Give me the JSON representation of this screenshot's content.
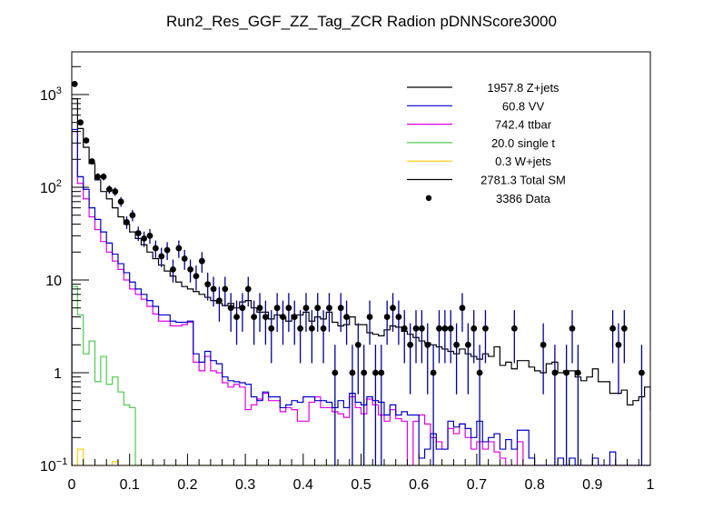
{
  "chart_data": {
    "type": "line",
    "title": "Run2_Res_GGF_ZZ_Tag_ZCR Radion  pDNNScore3000",
    "xlabel": "",
    "ylabel": "",
    "xlim": [
      0,
      1
    ],
    "ylim": [
      0.1,
      2900
    ],
    "yscale": "log",
    "grid": false,
    "legend_position": "top-right",
    "x_ticks": [
      "0",
      "0.1",
      "0.2",
      "0.3",
      "0.4",
      "0.5",
      "0.6",
      "0.7",
      "0.8",
      "0.9",
      "1"
    ],
    "y_ticks": [
      {
        "base": "10",
        "exp": "3",
        "value": 1000
      },
      {
        "base": "10",
        "exp": "2",
        "value": 100
      },
      {
        "base": "10",
        "exp": "",
        "value": 10
      },
      {
        "base": "1",
        "exp": "",
        "value": 1
      },
      {
        "base": "10",
        "exp": "−1",
        "value": 0.1
      }
    ],
    "bin_edges_start": 0,
    "bin_width": 0.01,
    "legend": [
      {
        "label": "1957.8 Z+jets",
        "color": "#000000",
        "kind": "line"
      },
      {
        "label": "60.8 VV",
        "color": "#0000cc",
        "kind": "line"
      },
      {
        "label": "742.4 ttbar",
        "color": "#e600e6",
        "kind": "line"
      },
      {
        "label": "20.0 single t",
        "color": "#4dcc4d",
        "kind": "line"
      },
      {
        "label": "0.3 W+jets",
        "color": "#ffcc00",
        "kind": "line"
      },
      {
        "label": "2781.3 Total SM",
        "color": "#000000",
        "kind": "line"
      },
      {
        "label": "3386 Data",
        "color": "#000000",
        "kind": "marker"
      }
    ],
    "series": [
      {
        "name": "Total SM",
        "color": "#000000",
        "values": [
          900,
          430,
          270,
          180,
          120,
          90,
          75,
          60,
          48,
          40,
          33,
          28,
          24,
          20,
          17,
          14.5,
          12.5,
          11,
          9.5,
          8.5,
          8,
          7.5,
          7,
          6.5,
          6,
          5.6,
          5.3,
          5.6,
          5,
          5.8,
          6,
          5,
          4.5,
          4.5,
          3.8,
          4.2,
          4,
          3.6,
          4.2,
          4.2,
          4.5,
          3.6,
          4,
          3.8,
          4.5,
          3.5,
          3.2,
          3.3,
          4,
          3.3,
          3.3,
          2.7,
          2.6,
          2.5,
          2.9,
          3.2,
          3.1,
          2.8,
          2.6,
          2.4,
          2.2,
          2.1,
          2,
          1.9,
          1.8,
          1.7,
          1.6,
          1.8,
          1.6,
          1.5,
          1.4,
          1.6,
          1.5,
          1.9,
          1.2,
          1.3,
          1.1,
          1.35,
          1.35,
          1.15,
          1.05,
          1,
          1.25,
          1.3,
          1,
          1.05,
          1.05,
          0.9,
          0.82,
          0.9,
          1.1,
          0.8,
          0.8,
          0.6,
          0.6,
          0.65,
          0.45,
          0.5,
          0.55,
          0.7,
          0.4
        ]
      },
      {
        "name": "VV",
        "color": "#0000cc",
        "values": [
          420,
          130,
          95,
          60,
          45,
          33,
          25,
          19,
          15,
          12,
          9.5,
          8,
          7,
          6,
          5.2,
          4.2,
          4.2,
          3.6,
          3.5,
          3.5,
          3.6,
          1.6,
          1.3,
          1.7,
          1.35,
          1.25,
          0.9,
          0.82,
          0.8,
          0.78,
          0.75,
          0.55,
          0.5,
          0.62,
          0.55,
          0.55,
          0.42,
          0.45,
          0.5,
          0.48,
          0.55,
          0.55,
          0.5,
          0.5,
          0.48,
          0.42,
          0.5,
          0.42,
          0.6,
          0.48,
          0.45,
          0.55,
          0.5,
          0.48,
          0.35,
          0.45,
          0.35,
          0.38,
          0.35,
          0.35,
          0.12,
          0.15,
          0.22,
          0.15,
          0.15,
          0.3,
          0.26,
          0.28,
          0.25,
          0.2,
          0.3,
          0.18,
          0.2,
          0.22,
          0.15,
          0.19,
          0.15,
          0.24,
          0.24,
          0.12,
          0.1,
          0.1,
          0.1,
          0.1,
          0.12,
          0.1,
          0.12,
          0.1,
          0.1,
          0.1,
          0.12,
          0.1,
          0.1,
          0.14,
          0.1,
          0.1,
          0.1,
          0.1,
          0.1,
          0.1
        ]
      },
      {
        "name": "ttbar",
        "color": "#e600e6",
        "values": [
          400,
          110,
          75,
          48,
          35,
          26,
          20,
          16,
          13,
          10,
          8,
          7,
          6.2,
          5.2,
          4.3,
          3.6,
          3.6,
          3.2,
          3.2,
          3.3,
          3.5,
          1.3,
          1.05,
          1.5,
          1.05,
          1,
          0.78,
          0.7,
          0.75,
          0.7,
          0.4,
          0.45,
          0.52,
          0.6,
          0.5,
          0.5,
          0.38,
          0.42,
          0.4,
          0.3,
          0.3,
          0.48,
          0.55,
          0.42,
          0.42,
          0.38,
          0.36,
          0.33,
          0.55,
          0.42,
          0.36,
          0.52,
          0.45,
          0.35,
          0.3,
          0.4,
          0.32,
          0.3,
          0.1,
          0.3,
          0.35,
          0.28,
          0.2,
          0.18,
          0.15,
          0.25,
          0.22,
          0.28,
          0.2,
          0.15,
          0.18,
          0.15,
          0.18,
          0.14,
          0.12,
          0.1,
          0.1,
          0.18,
          0.1,
          0.1,
          0.1,
          0.1,
          0.1,
          0.1,
          0.1,
          0.1,
          0.1,
          0.1,
          0.1,
          0.1,
          0.1,
          0.1,
          0.1,
          0.1,
          0.1,
          0.1,
          0.1,
          0.1,
          0.1,
          0.1
        ]
      },
      {
        "name": "single t",
        "color": "#4dcc4d",
        "values": [
          8.5,
          4.2,
          1.6,
          2.2,
          0.8,
          1.5,
          0.75,
          0.9,
          0.62,
          0.45,
          0.42,
          0.1,
          0.1,
          0.1,
          0.1,
          0.1,
          0.1,
          0.1,
          0.1,
          0.1,
          0.1,
          0.1,
          0.1,
          0.1,
          0.1,
          0.1,
          0.1,
          0.1,
          0.1,
          0.1,
          0.1,
          0.1,
          0.1,
          0.1,
          0.1,
          0.1,
          0.1,
          0.1,
          0.1,
          0.1,
          0.1,
          0.1,
          0.1,
          0.1,
          0.1,
          0.1,
          0.1,
          0.1,
          0.1,
          0.1,
          0.1,
          0.1,
          0.1,
          0.1,
          0.1,
          0.1,
          0.1,
          0.1,
          0.1,
          0.1,
          0.1,
          0.1,
          0.1,
          0.1,
          0.1,
          0.1,
          0.1,
          0.1,
          0.1,
          0.1,
          0.1,
          0.1,
          0.1,
          0.1,
          0.1,
          0.1,
          0.1,
          0.1,
          0.1,
          0.1,
          0.1,
          0.1,
          0.1,
          0.1,
          0.1,
          0.1,
          0.1,
          0.1,
          0.1,
          0.1,
          0.1,
          0.1,
          0.1,
          0.1,
          0.1,
          0.1,
          0.1,
          0.1,
          0.1,
          0.1
        ]
      },
      {
        "name": "W+jets",
        "color": "#ffcc00",
        "values": [
          0.1,
          0.15,
          0.1,
          0.1,
          0.1,
          0.1,
          0.1,
          0.11,
          0.1,
          0.1,
          0.1,
          0.1,
          0.1,
          0.1,
          0.1,
          0.1,
          0.1,
          0.1,
          0.1,
          0.1,
          0.1,
          0.1,
          0.1,
          0.1,
          0.1,
          0.1,
          0.1,
          0.1,
          0.1,
          0.1,
          0.1,
          0.1,
          0.1,
          0.1,
          0.1,
          0.1,
          0.1,
          0.1,
          0.1,
          0.1,
          0.1,
          0.1,
          0.1,
          0.1,
          0.1,
          0.1,
          0.1,
          0.1,
          0.1,
          0.1,
          0.1,
          0.1,
          0.1,
          0.1,
          0.1,
          0.1,
          0.1,
          0.1,
          0.1,
          0.1,
          0.1,
          0.1,
          0.1,
          0.1,
          0.1,
          0.1,
          0.1,
          0.1,
          0.1,
          0.1,
          0.1,
          0.1,
          0.1,
          0.1,
          0.1,
          0.1,
          0.1,
          0.1,
          0.1,
          0.1,
          0.1,
          0.1,
          0.1,
          0.1,
          0.1,
          0.1,
          0.1,
          0.1,
          0.1,
          0.1,
          0.1,
          0.1,
          0.1,
          0.1,
          0.1,
          0.1,
          0.1,
          0.1,
          0.1,
          0.1
        ]
      }
    ],
    "data_points": {
      "name": "Data",
      "x": [
        0.005,
        0.015,
        0.025,
        0.035,
        0.045,
        0.055,
        0.065,
        0.075,
        0.085,
        0.095,
        0.105,
        0.115,
        0.125,
        0.135,
        0.145,
        0.155,
        0.165,
        0.175,
        0.185,
        0.195,
        0.205,
        0.215,
        0.225,
        0.235,
        0.245,
        0.255,
        0.265,
        0.275,
        0.285,
        0.295,
        0.305,
        0.315,
        0.325,
        0.335,
        0.345,
        0.355,
        0.365,
        0.375,
        0.385,
        0.395,
        0.405,
        0.415,
        0.425,
        0.435,
        0.445,
        0.455,
        0.465,
        0.475,
        0.485,
        0.495,
        0.505,
        0.515,
        0.525,
        0.535,
        0.545,
        0.555,
        0.565,
        0.575,
        0.585,
        0.595,
        0.605,
        0.615,
        0.625,
        0.635,
        0.645,
        0.655,
        0.665,
        0.675,
        0.685,
        0.695,
        0.705,
        0.715,
        0.765,
        0.815,
        0.835,
        0.855,
        0.865,
        0.875,
        0.935,
        0.945,
        0.955,
        0.985
      ],
      "y": [
        1300,
        500,
        320,
        190,
        130,
        130,
        95,
        90,
        70,
        42,
        50,
        32,
        28,
        30,
        22,
        18,
        21,
        13,
        22,
        17,
        13,
        11,
        16,
        9,
        8,
        6,
        8,
        5,
        4,
        5,
        8,
        4,
        5,
        4,
        3,
        5,
        4,
        5,
        4,
        3,
        5,
        3,
        5,
        3,
        5,
        1,
        5,
        4,
        1,
        2,
        1,
        4,
        1,
        1,
        4,
        5,
        4,
        3,
        2,
        3,
        3,
        2,
        1,
        3,
        3,
        3,
        2,
        5,
        2,
        3,
        1,
        3,
        3,
        2,
        1,
        1,
        3,
        1,
        3,
        2,
        3,
        1
      ],
      "yerr_present": true,
      "errbar_color": "#000099"
    }
  }
}
